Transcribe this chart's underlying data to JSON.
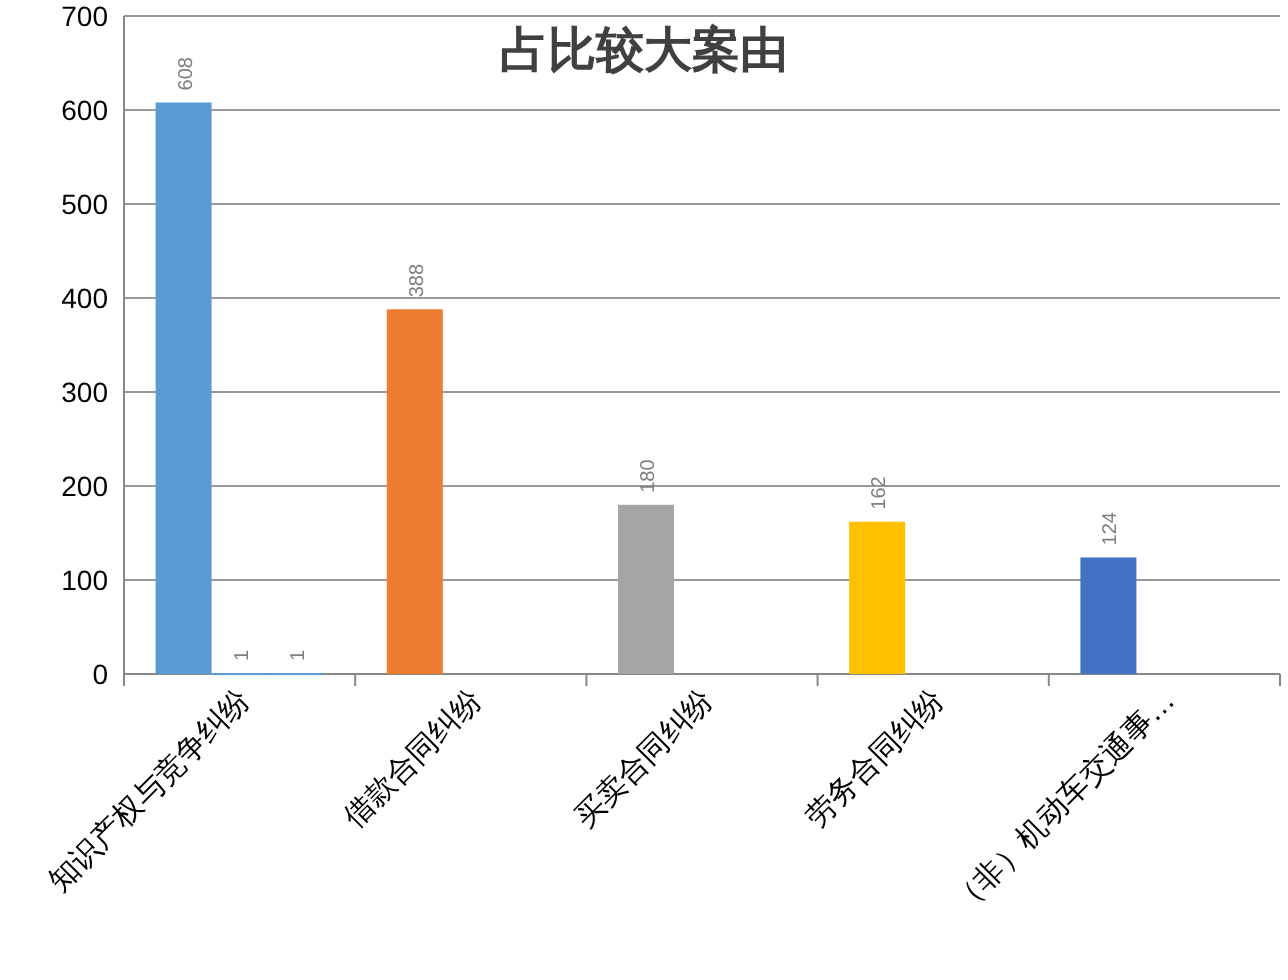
{
  "chart_data": {
    "type": "bar",
    "title": "占比较大案由",
    "categories": [
      "知识产权与竞争纠纷",
      "借款合同纠纷",
      "买卖合同纠纷",
      "劳务合同纠纷",
      "（非）机动车交通事…"
    ],
    "series": [
      {
        "values": [
          608,
          388,
          180,
          162,
          124
        ],
        "colors": [
          "#5b9bd5",
          "#ed7d31",
          "#a5a5a5",
          "#ffc000",
          "#4472c4"
        ]
      },
      {
        "color": "#5b9bd5",
        "values": [
          1,
          null,
          null,
          null,
          null
        ]
      },
      {
        "color": "#5b9bd5",
        "values": [
          1,
          null,
          null,
          null,
          null
        ]
      }
    ],
    "ylim": [
      0,
      700
    ],
    "yticks": [
      0,
      100,
      200,
      300,
      400,
      500,
      600,
      700
    ],
    "grid": "y",
    "data_labels": true
  }
}
